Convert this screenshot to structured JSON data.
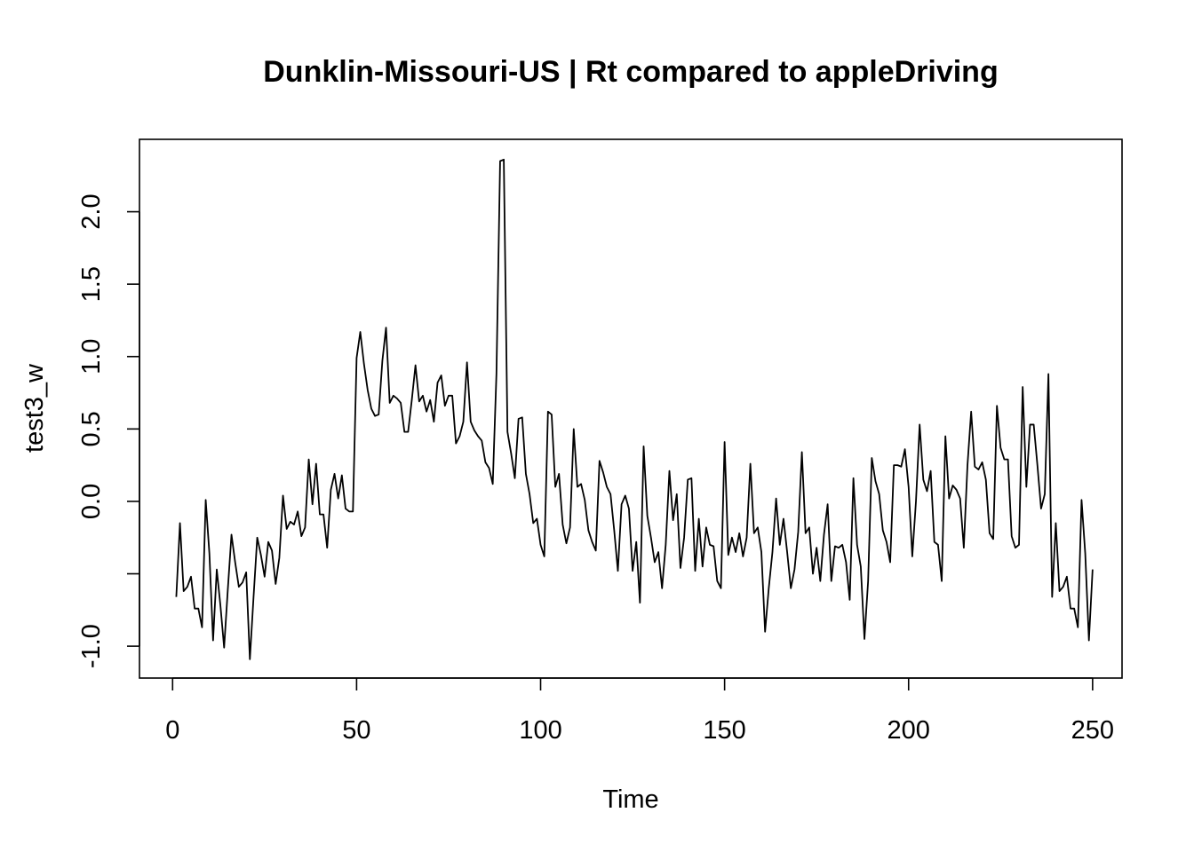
{
  "chart_data": {
    "type": "line",
    "title": "Dunklin-Missouri-US | Rt compared to appleDriving",
    "xlabel": "Time",
    "ylabel": "test3_w",
    "xlim": [
      -9,
      258
    ],
    "ylim": [
      -1.22,
      2.5
    ],
    "xticks": [
      0,
      50,
      100,
      150,
      200,
      250
    ],
    "xtick_labels": [
      "0",
      "50",
      "100",
      "150",
      "200",
      "250"
    ],
    "yticks": [
      -1.0,
      -0.5,
      0.0,
      0.5,
      1.0,
      1.5,
      2.0
    ],
    "ytick_labels": [
      "-1.0",
      "",
      "0.0",
      "0.5",
      "1.0",
      "1.5",
      "2.0"
    ],
    "grid": false,
    "legend": "none",
    "series": [
      {
        "x_start": 1,
        "x_step": 1,
        "values": [
          -0.66,
          -0.15,
          -0.62,
          -0.59,
          -0.52,
          -0.74,
          -0.74,
          -0.87,
          0.01,
          -0.36,
          -0.96,
          -0.47,
          -0.72,
          -1.01,
          -0.61,
          -0.23,
          -0.42,
          -0.59,
          -0.56,
          -0.49,
          -1.09,
          -0.66,
          -0.25,
          -0.37,
          -0.52,
          -0.28,
          -0.34,
          -0.57,
          -0.39,
          0.04,
          -0.19,
          -0.14,
          -0.16,
          -0.07,
          -0.24,
          -0.18,
          0.29,
          -0.02,
          0.26,
          -0.09,
          -0.09,
          -0.32,
          0.08,
          0.19,
          0.02,
          0.18,
          -0.05,
          -0.07,
          -0.07,
          0.99,
          1.17,
          0.95,
          0.77,
          0.64,
          0.59,
          0.6,
          0.97,
          1.2,
          0.68,
          0.73,
          0.71,
          0.68,
          0.48,
          0.48,
          0.7,
          0.94,
          0.69,
          0.73,
          0.62,
          0.7,
          0.55,
          0.82,
          0.87,
          0.66,
          0.73,
          0.73,
          0.4,
          0.45,
          0.55,
          0.96,
          0.55,
          0.49,
          0.45,
          0.42,
          0.27,
          0.23,
          0.12,
          0.88,
          2.35,
          2.36,
          0.48,
          0.33,
          0.16,
          0.57,
          0.58,
          0.19,
          0.05,
          -0.15,
          -0.12,
          -0.3,
          -0.38,
          0.62,
          0.6,
          0.1,
          0.19,
          -0.16,
          -0.29,
          -0.18,
          0.5,
          0.1,
          0.12,
          0.01,
          -0.2,
          -0.28,
          -0.34,
          0.28,
          0.2,
          0.1,
          0.05,
          -0.2,
          -0.48,
          -0.02,
          0.04,
          -0.05,
          -0.48,
          -0.28,
          -0.7,
          0.38,
          -0.1,
          -0.25,
          -0.42,
          -0.35,
          -0.6,
          -0.3,
          0.21,
          -0.13,
          0.05,
          -0.46,
          -0.25,
          0.15,
          0.16,
          -0.48,
          -0.12,
          -0.45,
          -0.18,
          -0.3,
          -0.31,
          -0.55,
          -0.6,
          0.41,
          -0.37,
          -0.25,
          -0.35,
          -0.22,
          -0.38,
          -0.25,
          0.26,
          -0.22,
          -0.18,
          -0.35,
          -0.9,
          -0.6,
          -0.35,
          0.02,
          -0.3,
          -0.12,
          -0.35,
          -0.6,
          -0.47,
          -0.21,
          0.34,
          -0.22,
          -0.18,
          -0.5,
          -0.32,
          -0.55,
          -0.23,
          -0.02,
          -0.55,
          -0.31,
          -0.32,
          -0.3,
          -0.42,
          -0.68,
          0.16,
          -0.3,
          -0.45,
          -0.95,
          -0.55,
          0.3,
          0.14,
          0.05,
          -0.2,
          -0.28,
          -0.42,
          0.25,
          0.25,
          0.24,
          0.36,
          0.1,
          -0.38,
          0.0,
          0.53,
          0.15,
          0.07,
          0.21,
          -0.28,
          -0.3,
          -0.55,
          0.45,
          0.02,
          0.11,
          0.08,
          0.02,
          -0.32,
          0.25,
          0.62,
          0.24,
          0.22,
          0.27,
          0.15,
          -0.22,
          -0.26,
          0.66,
          0.37,
          0.29,
          0.29,
          -0.24,
          -0.32,
          -0.3,
          0.79,
          0.1,
          0.53,
          0.53,
          0.25,
          -0.05,
          0.05,
          0.88,
          -0.66,
          -0.15,
          -0.62,
          -0.59,
          -0.52,
          -0.74,
          -0.74,
          -0.87,
          0.01,
          -0.36,
          -0.96,
          -0.47
        ]
      }
    ]
  }
}
